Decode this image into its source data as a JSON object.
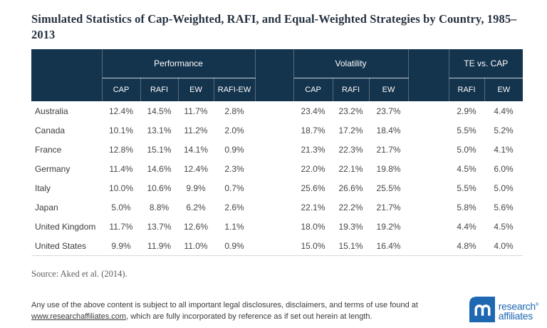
{
  "title": "Simulated Statistics of Cap-Weighted, RAFI, and Equal-Weighted Strategies by Country, 1985–2013",
  "chart_data": {
    "type": "table",
    "title": "Simulated Statistics of Cap-Weighted, RAFI, and Equal-Weighted Strategies by Country, 1985–2013",
    "groups": [
      {
        "label": "Performance",
        "columns": [
          "CAP",
          "RAFI",
          "EW",
          "RAFI-EW"
        ]
      },
      {
        "label": "Volatility",
        "columns": [
          "CAP",
          "RAFI",
          "EW"
        ]
      },
      {
        "label": "TE vs. CAP",
        "columns": [
          "RAFI",
          "EW"
        ]
      }
    ],
    "rows": [
      {
        "country": "Australia",
        "values": [
          "12.4%",
          "14.5%",
          "11.7%",
          "2.8%",
          "23.4%",
          "23.2%",
          "23.7%",
          "2.9%",
          "4.4%"
        ]
      },
      {
        "country": "Canada",
        "values": [
          "10.1%",
          "13.1%",
          "11.2%",
          "2.0%",
          "18.7%",
          "17.2%",
          "18.4%",
          "5.5%",
          "5.2%"
        ]
      },
      {
        "country": "France",
        "values": [
          "12.8%",
          "15.1%",
          "14.1%",
          "0.9%",
          "21.3%",
          "22.3%",
          "21.7%",
          "5.0%",
          "4.1%"
        ]
      },
      {
        "country": "Germany",
        "values": [
          "11.4%",
          "14.6%",
          "12.4%",
          "2.3%",
          "22.0%",
          "22.1%",
          "19.8%",
          "4.5%",
          "6.0%"
        ]
      },
      {
        "country": "Italy",
        "values": [
          "10.0%",
          "10.6%",
          "9.9%",
          "0.7%",
          "25.6%",
          "26.6%",
          "25.5%",
          "5.5%",
          "5.0%"
        ]
      },
      {
        "country": "Japan",
        "values": [
          "5.0%",
          "8.8%",
          "6.2%",
          "2.6%",
          "22.1%",
          "22.2%",
          "21.7%",
          "5.8%",
          "5.6%"
        ]
      },
      {
        "country": "United Kingdom",
        "values": [
          "11.7%",
          "13.7%",
          "12.6%",
          "1.1%",
          "18.0%",
          "19.3%",
          "19.2%",
          "4.4%",
          "4.5%"
        ]
      },
      {
        "country": "United States",
        "values": [
          "9.9%",
          "11.9%",
          "11.0%",
          "0.9%",
          "15.0%",
          "15.1%",
          "16.4%",
          "4.8%",
          "4.0%"
        ]
      }
    ]
  },
  "source": "Source: Aked et al. (2014).",
  "footer": {
    "legal_line1": "Any use of the above content is subject to all important legal disclosures, disclaimers, and terms of use found at",
    "legal_link": "www.researchaffiliates.com",
    "legal_rest": ", which are fully incorporated by reference as if set out herein at length.",
    "logo": {
      "icon": "ra-monogram-icon",
      "line1": "research",
      "trademark": "®",
      "line2": "affiliates"
    }
  },
  "colors": {
    "header_navy": "#14334D",
    "logo_blue": "#1E68B2",
    "table_bottom_border": "#D9D9D9"
  }
}
